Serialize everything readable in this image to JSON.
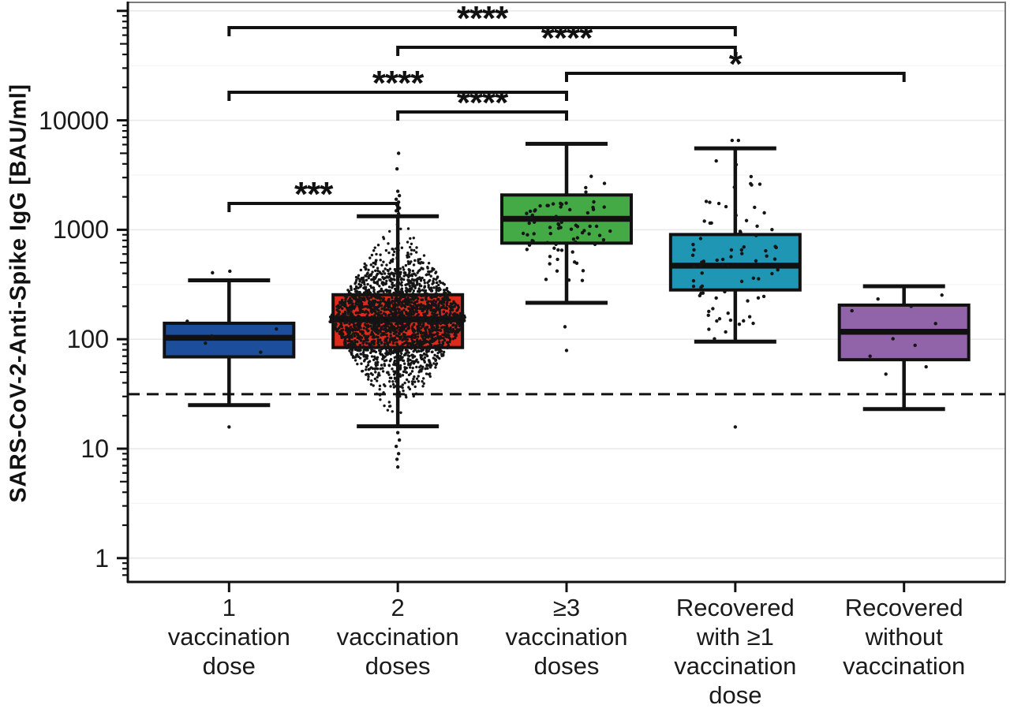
{
  "figure": {
    "background": "#ffffff"
  },
  "chart_data": {
    "type": "boxplot",
    "title": "",
    "ylabel": "SARS-CoV-2-Anti-Spike IgG [BAU/ml]",
    "xlabel": "",
    "y_scale": "log10",
    "ylim": [
      0.6,
      117000
    ],
    "y_ticks": [
      1,
      10,
      100,
      1000,
      10000
    ],
    "y_tick_labels": [
      "1",
      "10",
      "100",
      "1000",
      "10000"
    ],
    "grid": "major-and-minor",
    "threshold_line": {
      "value": 31.5,
      "style": "dashed",
      "color": "#111111"
    },
    "categories": [
      [
        "1",
        "vaccination",
        "dose"
      ],
      [
        "2",
        "vaccination",
        "doses"
      ],
      [
        "≥3",
        "vaccination",
        "doses"
      ],
      [
        "Recovered",
        "with ≥1",
        "vaccination",
        "dose"
      ],
      [
        "Recovered",
        "without",
        "vaccination"
      ]
    ],
    "groups": [
      {
        "name": "1-vaccination-dose",
        "color": "#1C4E9B",
        "stats": {
          "whisker_low": 25,
          "q1": 69,
          "median": 103,
          "q3": 140,
          "whisker_high": 345
        },
        "explicit_points": [
          [
            -21,
            405
          ],
          [
            1,
            418
          ],
          [
            -53,
            146
          ],
          [
            60,
            124
          ],
          [
            -22,
            107
          ],
          [
            40,
            76
          ],
          [
            -30,
            92
          ],
          [
            0,
            15.8
          ]
        ]
      },
      {
        "name": "2-vaccination-doses",
        "color": "#DD2A1C",
        "stats": {
          "whisker_low": 16,
          "q1": 84,
          "median": 152,
          "q3": 255,
          "whisker_high": 1330
        },
        "cloud": {
          "n": 2300,
          "mu_log": 2.18,
          "sd_log": 0.27,
          "half_width": 88,
          "env_range": 0.98,
          "env_pow": 1.0,
          "clip": [
            17,
            1300
          ],
          "seed": 7,
          "dot_r": 1.7
        },
        "explicit_points": [
          [
            1,
            1400
          ],
          [
            -2,
            1490
          ],
          [
            2,
            1580
          ],
          [
            -1,
            1680
          ],
          [
            1,
            1790
          ],
          [
            -2,
            1900
          ],
          [
            2,
            2050
          ],
          [
            0,
            2250
          ],
          [
            -1,
            3600
          ],
          [
            1,
            5000
          ],
          [
            0,
            14
          ],
          [
            2,
            12
          ],
          [
            -2,
            10.5
          ],
          [
            1,
            9
          ],
          [
            -1,
            8
          ],
          [
            0,
            6.8
          ]
        ]
      },
      {
        "name": "3-or-more-vaccination-doses",
        "color": "#43AA45",
        "stats": {
          "whisker_low": 215,
          "q1": 755,
          "median": 1260,
          "q3": 2080,
          "whisker_high": 6100
        },
        "cloud": {
          "n": 64,
          "mu_log": 3.08,
          "sd_log": 0.17,
          "half_width": 58,
          "env_range": 0.75,
          "env_pow": 0.3,
          "clip": [
            320,
            4300
          ],
          "seed": 11,
          "dot_r": 2.2
        },
        "explicit_points": [
          [
            -6,
            650
          ],
          [
            -21,
            570
          ],
          [
            13,
            495
          ],
          [
            21,
            423
          ],
          [
            -12,
            420
          ],
          [
            -26,
            352
          ],
          [
            3,
            347
          ],
          [
            20,
            344
          ],
          [
            -2,
            130
          ],
          [
            0,
            79
          ]
        ]
      },
      {
        "name": "recovered-with-vaccination",
        "color": "#1F97B4",
        "stats": {
          "whisker_low": 95,
          "q1": 282,
          "median": 470,
          "q3": 905,
          "whisker_high": 5550
        },
        "cloud": {
          "n": 80,
          "mu_log": 2.67,
          "sd_log": 0.4,
          "half_width": 60,
          "env_range": 1.15,
          "env_pow": 0.5,
          "clip": [
            100,
            5400
          ],
          "seed": 13,
          "dot_r": 2.2
        },
        "explicit_points": [
          [
            -4,
            6550
          ],
          [
            4,
            6550
          ],
          [
            0,
            15.8
          ]
        ]
      },
      {
        "name": "recovered-without-vaccination",
        "color": "#9163A8",
        "stats": {
          "whisker_low": 23,
          "q1": 65,
          "median": 117,
          "q3": 205,
          "whisker_high": 305
        },
        "explicit_points": [
          [
            -33,
            233
          ],
          [
            48,
            253
          ],
          [
            -66,
            182
          ],
          [
            9,
            200
          ],
          [
            40,
            139
          ],
          [
            -14,
            101
          ],
          [
            14,
            88
          ],
          [
            -43,
            70
          ],
          [
            28,
            56
          ],
          [
            -23,
            48
          ]
        ]
      }
    ],
    "comparisons": [
      {
        "group_a": 0,
        "group_b": 3,
        "label": "****"
      },
      {
        "group_a": 1,
        "group_b": 3,
        "label": "****"
      },
      {
        "group_a": 2,
        "group_b": 4,
        "label": "*"
      },
      {
        "group_a": 0,
        "group_b": 2,
        "label": "****"
      },
      {
        "group_a": 1,
        "group_b": 2,
        "label": "****"
      },
      {
        "group_a": 0,
        "group_b": 1,
        "label": "***"
      }
    ],
    "colors": {
      "box_outline": "#111111",
      "panel_border": "#7a7a7a",
      "grid_major": "#e9e9e9",
      "grid_minor": "#f4f4f4",
      "points": "#151515"
    }
  }
}
